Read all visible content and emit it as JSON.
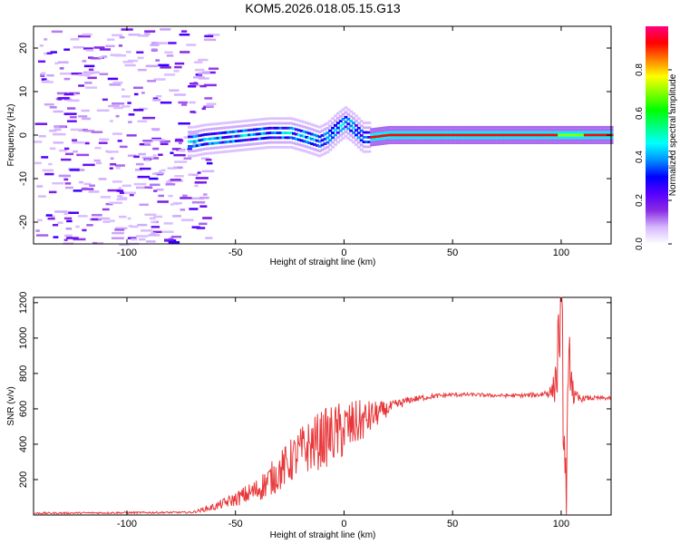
{
  "chart_data": [
    {
      "type": "heatmap",
      "title": "KOM5.2026.018.05.15.G13",
      "xlabel": "Height of straight line (km)",
      "ylabel": "Frequency (Hz)",
      "xlim": [
        -143,
        123
      ],
      "ylim": [
        -25,
        25
      ],
      "xticks": [
        -100,
        -50,
        0,
        50,
        100
      ],
      "yticks": [
        -20,
        -10,
        0,
        10,
        20
      ],
      "grid": false,
      "colorbar": {
        "label": "Normalized spectral amplitude",
        "range": [
          0,
          1
        ],
        "ticks": [
          0.0,
          0.2,
          0.4,
          0.6,
          0.8
        ],
        "tick_labels": [
          "0.0",
          "0.2",
          "0.4",
          "0.6",
          "0.8"
        ],
        "colormap": [
          "#ffffff",
          "#d6b8ff",
          "#8a2be2",
          "#5500ff",
          "#0000ff",
          "#0090ff",
          "#00ffff",
          "#00ff80",
          "#00ff00",
          "#80ff00",
          "#ffff00",
          "#ff8000",
          "#ff0000",
          "#ff0080"
        ]
      },
      "ridge": {
        "x": [
          -70,
          -65,
          -55,
          -45,
          -35,
          -25,
          -18,
          -12,
          -8,
          -4,
          0,
          4,
          8,
          12,
          20,
          40,
          60,
          80,
          100,
          110,
          123
        ],
        "y": [
          -1.5,
          -1.0,
          -0.5,
          0.0,
          0.5,
          0.5,
          -0.5,
          -1.5,
          -0.5,
          1.5,
          3.0,
          1.5,
          -0.5,
          -0.5,
          0.0,
          0.0,
          0.0,
          0.0,
          0.0,
          0.0,
          0.0
        ]
      },
      "noise_region_x": [
        -143,
        -70
      ]
    },
    {
      "type": "line",
      "xlabel": "Height of straight line (km)",
      "ylabel": "SNR (v/v)",
      "xlim": [
        -143,
        123
      ],
      "ylim": [
        0,
        1230
      ],
      "xticks": [
        -100,
        -50,
        0,
        50,
        100
      ],
      "yticks": [
        200,
        400,
        600,
        800,
        1000,
        1200
      ],
      "grid": false,
      "series": [
        {
          "name": "SNR",
          "color": "#e8373a",
          "envelope_x": [
            -143,
            -70,
            -60,
            -50,
            -40,
            -30,
            -20,
            -10,
            0,
            10,
            20,
            30,
            40,
            50,
            60,
            70,
            80,
            90,
            96,
            98,
            100,
            102,
            104,
            106,
            110,
            123
          ],
          "envelope_y": [
            10,
            15,
            45,
            90,
            140,
            240,
            360,
            430,
            480,
            540,
            600,
            650,
            670,
            680,
            680,
            675,
            675,
            680,
            700,
            800,
            1230,
            60,
            900,
            650,
            660,
            660
          ],
          "noise_amplitude": [
            5,
            5,
            20,
            40,
            70,
            110,
            140,
            170,
            170,
            110,
            40,
            20,
            15,
            12,
            10,
            10,
            10,
            15,
            40,
            200,
            300,
            300,
            200,
            60,
            15,
            10
          ]
        }
      ]
    }
  ]
}
